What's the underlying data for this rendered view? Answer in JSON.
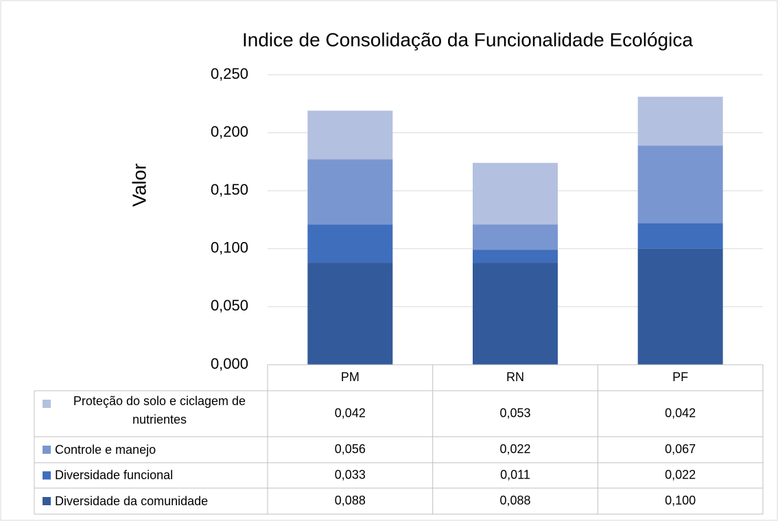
{
  "chart_data": {
    "type": "stacked_bar",
    "title": "Indice de Consolidação da Funcionalidade Ecológica",
    "y_label": "Valor",
    "categories": [
      "PM",
      "RN",
      "PF"
    ],
    "series": [
      {
        "name": "Diversidade da comunidade",
        "color": "#335a9b",
        "values": [
          0.088,
          0.088,
          0.1
        ],
        "value_labels": [
          "0,088",
          "0,088",
          "0,100"
        ]
      },
      {
        "name": "Diversidade funcional",
        "color": "#3f6ebd",
        "values": [
          0.033,
          0.011,
          0.022
        ],
        "value_labels": [
          "0,033",
          "0,011",
          "0,022"
        ]
      },
      {
        "name": "Controle e manejo",
        "color": "#7a96d0",
        "values": [
          0.056,
          0.022,
          0.067
        ],
        "value_labels": [
          "0,056",
          "0,022",
          "0,067"
        ]
      },
      {
        "name": "Proteção do solo e ciclagem de nutrientes",
        "color": "#b4c0e0",
        "values": [
          0.042,
          0.053,
          0.042
        ],
        "value_labels": [
          "0,042",
          "0,053",
          "0,042"
        ]
      }
    ],
    "ylim": [
      0,
      0.25
    ],
    "yticks": [
      {
        "value": 0,
        "label": "0,000"
      },
      {
        "value": 0.05,
        "label": "0,050"
      },
      {
        "value": 0.1,
        "label": "0,100"
      },
      {
        "value": 0.15,
        "label": "0,150"
      },
      {
        "value": 0.2,
        "label": "0,200"
      },
      {
        "value": 0.25,
        "label": "0,250"
      }
    ],
    "grid": true
  }
}
